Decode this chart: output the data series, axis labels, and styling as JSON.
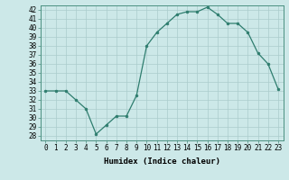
{
  "x": [
    0,
    1,
    2,
    3,
    4,
    5,
    6,
    7,
    8,
    9,
    10,
    11,
    12,
    13,
    14,
    15,
    16,
    17,
    18,
    19,
    20,
    21,
    22,
    23
  ],
  "y": [
    33,
    33,
    33,
    32,
    31,
    28.2,
    29.2,
    30.2,
    30.2,
    32.5,
    38.0,
    39.5,
    40.5,
    41.5,
    41.8,
    41.8,
    42.3,
    41.5,
    40.5,
    40.5,
    39.5,
    37.2,
    36.0,
    33.2
  ],
  "line_color": "#2e7d6e",
  "marker_color": "#2e7d6e",
  "bg_color": "#cce8e8",
  "grid_color": "#aacccc",
  "xlabel": "Humidex (Indice chaleur)",
  "ylim": [
    27.5,
    42.5
  ],
  "xlim": [
    -0.5,
    23.5
  ],
  "yticks": [
    28,
    29,
    30,
    31,
    32,
    33,
    34,
    35,
    36,
    37,
    38,
    39,
    40,
    41,
    42
  ],
  "xticks": [
    0,
    1,
    2,
    3,
    4,
    5,
    6,
    7,
    8,
    9,
    10,
    11,
    12,
    13,
    14,
    15,
    16,
    17,
    18,
    19,
    20,
    21,
    22,
    23
  ],
  "xtick_labels": [
    "0",
    "1",
    "2",
    "3",
    "4",
    "5",
    "6",
    "7",
    "8",
    "9",
    "10",
    "11",
    "12",
    "13",
    "14",
    "15",
    "16",
    "17",
    "18",
    "19",
    "20",
    "21",
    "22",
    "23"
  ],
  "axis_fontsize": 6.5,
  "tick_fontsize": 5.5
}
